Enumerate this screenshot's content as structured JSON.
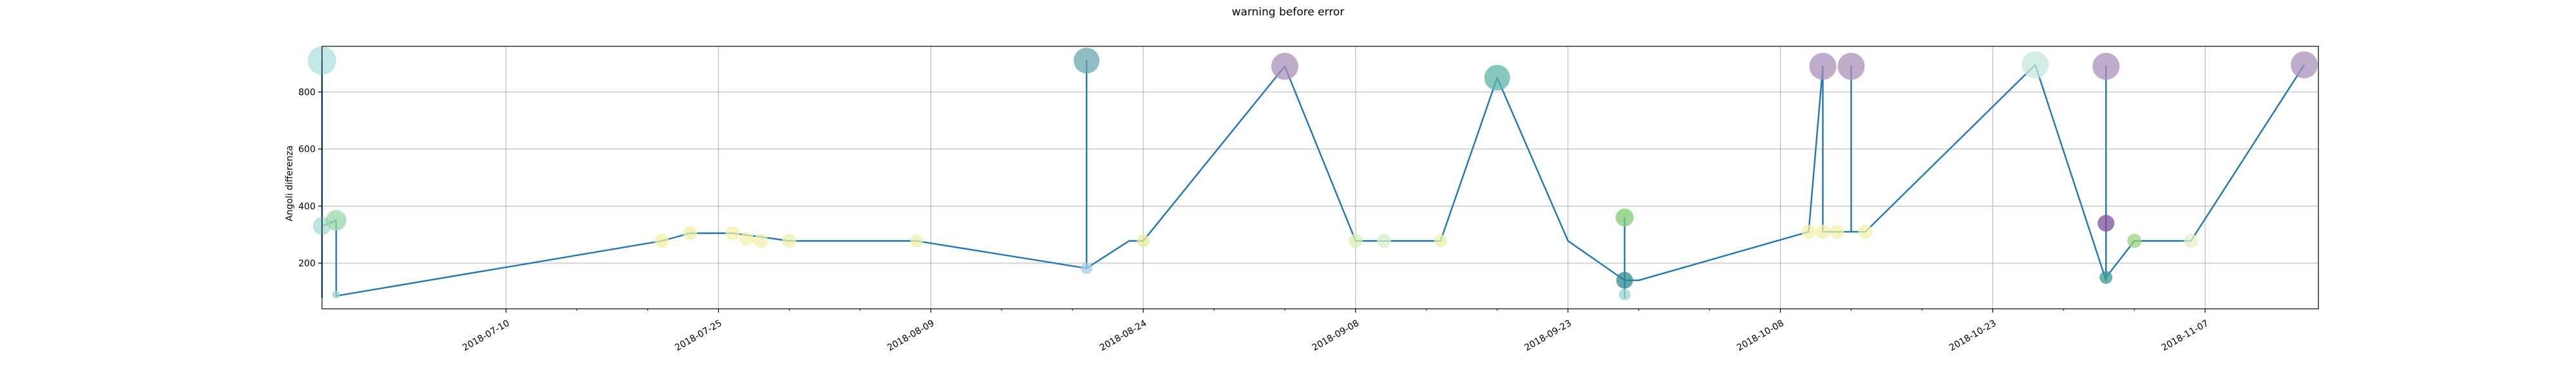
{
  "chart_data": {
    "type": "scatter",
    "title": "warning before error",
    "xlabel": "",
    "ylabel": "Angoli differenza",
    "grid": true,
    "x_tick_labels": [
      "2018-07-10",
      "2018-07-25",
      "2018-08-09",
      "2018-08-24",
      "2018-09-08",
      "2018-09-23",
      "2018-10-08",
      "2018-10-23",
      "2018-11-07"
    ],
    "y_ticks": [
      200,
      400,
      600,
      800
    ],
    "xlim": [
      "2018-06-27",
      "2018-11-15"
    ],
    "ylim": [
      40,
      960
    ],
    "line_color": "#1f77b4",
    "line": {
      "x": [
        "2018-06-27",
        "2018-06-27",
        "2018-06-27",
        "2018-06-27",
        "2018-06-27",
        "2018-06-28",
        "2018-06-28",
        "2018-07-21",
        "2018-07-23",
        "2018-07-26",
        "2018-07-29",
        "2018-07-30",
        "2018-08-01",
        "2018-08-08",
        "2018-08-20",
        "2018-08-20",
        "2018-08-20",
        "2018-08-23",
        "2018-08-24",
        "2018-09-03",
        "2018-09-08",
        "2018-09-10",
        "2018-09-13",
        "2018-09-14",
        "2018-09-18",
        "2018-09-23",
        "2018-09-27",
        "2018-09-27",
        "2018-09-27",
        "2018-09-27",
        "2018-09-27",
        "2018-09-27",
        "2018-09-27",
        "2018-09-28",
        "2018-10-10",
        "2018-10-11",
        "2018-10-11",
        "2018-10-11",
        "2018-10-13",
        "2018-10-13",
        "2018-10-13",
        "2018-10-14",
        "2018-10-26",
        "2018-10-31",
        "2018-10-31",
        "2018-10-31",
        "2018-10-31",
        "2018-11-02",
        "2018-11-06",
        "2018-11-14"
      ],
      "y": [
        910,
        80,
        340,
        365,
        330,
        350,
        85,
        278,
        305,
        305,
        285,
        278,
        278,
        278,
        182,
        910,
        182,
        278,
        278,
        890,
        278,
        278,
        278,
        278,
        850,
        278,
        140,
        90,
        360,
        140,
        80,
        90,
        140,
        140,
        310,
        890,
        310,
        310,
        310,
        890,
        310,
        310,
        895,
        140,
        890,
        340,
        150,
        278,
        278,
        895
      ]
    },
    "series": [
      {
        "label": "",
        "points": [
          {
            "x": "2018-06-27",
            "y": 910,
            "r": 22,
            "color": "#aedfe0"
          },
          {
            "x": "2018-06-27",
            "y": 330,
            "r": 14,
            "color": "#a7dcd6"
          },
          {
            "x": "2018-06-28",
            "y": 350,
            "r": 16,
            "color": "#9bd7a7"
          },
          {
            "x": "2018-06-28",
            "y": 90,
            "r": 6,
            "color": "#9bd6d8"
          },
          {
            "x": "2018-07-21",
            "y": 278,
            "r": 11,
            "color": "#f1f0a2"
          },
          {
            "x": "2018-07-23",
            "y": 305,
            "r": 11,
            "color": "#eef0a6"
          },
          {
            "x": "2018-07-26",
            "y": 305,
            "r": 11,
            "color": "#f3f1a8"
          },
          {
            "x": "2018-07-27",
            "y": 285,
            "r": 11,
            "color": "#f1f1aa"
          },
          {
            "x": "2018-07-28",
            "y": 278,
            "r": 11,
            "color": "#eff0ab"
          },
          {
            "x": "2018-07-30",
            "y": 278,
            "r": 11,
            "color": "#eef0ab"
          },
          {
            "x": "2018-08-08",
            "y": 278,
            "r": 10,
            "color": "#eef0ab"
          },
          {
            "x": "2018-08-20",
            "y": 182,
            "r": 9,
            "color": "#a9cde6"
          },
          {
            "x": "2018-08-20",
            "y": 910,
            "r": 20,
            "color": "#6aa8ad"
          },
          {
            "x": "2018-08-24",
            "y": 278,
            "r": 10,
            "color": "#eaee9c"
          },
          {
            "x": "2018-09-03",
            "y": 890,
            "r": 21,
            "color": "#a990b8"
          },
          {
            "x": "2018-09-08",
            "y": 278,
            "r": 11,
            "color": "#dfefb4"
          },
          {
            "x": "2018-09-10",
            "y": 278,
            "r": 11,
            "color": "#d8efc8"
          },
          {
            "x": "2018-09-14",
            "y": 278,
            "r": 10,
            "color": "#eef0ab"
          },
          {
            "x": "2018-09-18",
            "y": 850,
            "r": 20,
            "color": "#5fb5a8"
          },
          {
            "x": "2018-09-27",
            "y": 360,
            "r": 14,
            "color": "#7fcc74"
          },
          {
            "x": "2018-09-27",
            "y": 140,
            "r": 13,
            "color": "#2e8a8f"
          },
          {
            "x": "2018-09-27",
            "y": 90,
            "r": 9,
            "color": "#9bd6cf"
          },
          {
            "x": "2018-10-10",
            "y": 310,
            "r": 11,
            "color": "#f3f2ab"
          },
          {
            "x": "2018-10-11",
            "y": 310,
            "r": 11,
            "color": "#f0f1a8"
          },
          {
            "x": "2018-10-11",
            "y": 890,
            "r": 21,
            "color": "#a990b8"
          },
          {
            "x": "2018-10-12",
            "y": 310,
            "r": 11,
            "color": "#f1f1aa"
          },
          {
            "x": "2018-10-13",
            "y": 890,
            "r": 21,
            "color": "#a990b8"
          },
          {
            "x": "2018-10-14",
            "y": 310,
            "r": 11,
            "color": "#f1f1aa"
          },
          {
            "x": "2018-10-26",
            "y": 895,
            "r": 21,
            "color": "#c5e8dd"
          },
          {
            "x": "2018-10-31",
            "y": 890,
            "r": 21,
            "color": "#a990b8"
          },
          {
            "x": "2018-10-31",
            "y": 340,
            "r": 13,
            "color": "#7e4e98"
          },
          {
            "x": "2018-10-31",
            "y": 150,
            "r": 10,
            "color": "#3e9a92"
          },
          {
            "x": "2018-11-02",
            "y": 278,
            "r": 11,
            "color": "#9bd47a"
          },
          {
            "x": "2018-11-06",
            "y": 278,
            "r": 11,
            "color": "#e5f0c5"
          },
          {
            "x": "2018-11-14",
            "y": 895,
            "r": 21,
            "color": "#a990b8"
          }
        ]
      }
    ]
  }
}
